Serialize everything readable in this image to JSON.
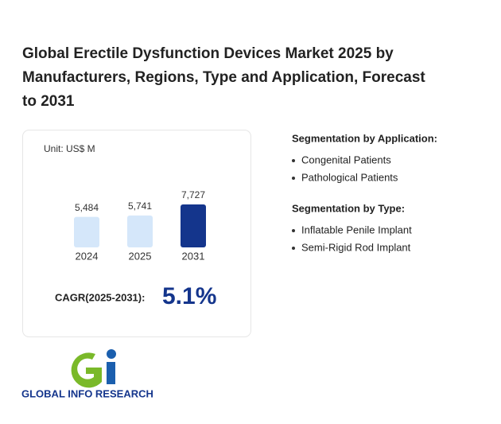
{
  "header": {
    "title_lines": [
      "Global Erectile Dysfunction Devices Market 2025 by",
      "Manufacturers, Regions, Type and Application, Forecast",
      "to 2031"
    ]
  },
  "chart_data": {
    "type": "bar",
    "unit": "Unit: US$ M",
    "categories": [
      "2024",
      "2025",
      "2031"
    ],
    "values": [
      5484,
      5741,
      7727
    ],
    "value_labels": [
      "5,484",
      "5,741",
      "7,727"
    ],
    "colors": [
      "#d5e7fa",
      "#d5e7fa",
      "#14358c"
    ]
  },
  "cagr": {
    "label": "CAGR(2025-2031):",
    "value": "5.1%"
  },
  "segments": [
    {
      "title": "Segmentation by Application:",
      "items": [
        "Congenital Patients",
        "Pathological Patients"
      ]
    },
    {
      "title": "Segmentation by Type:",
      "items": [
        "Inflatable Penile Implant",
        "Semi-Rigid Rod Implant"
      ]
    }
  ],
  "logo": {
    "text": "GLOBAL INFO RESEARCH"
  }
}
